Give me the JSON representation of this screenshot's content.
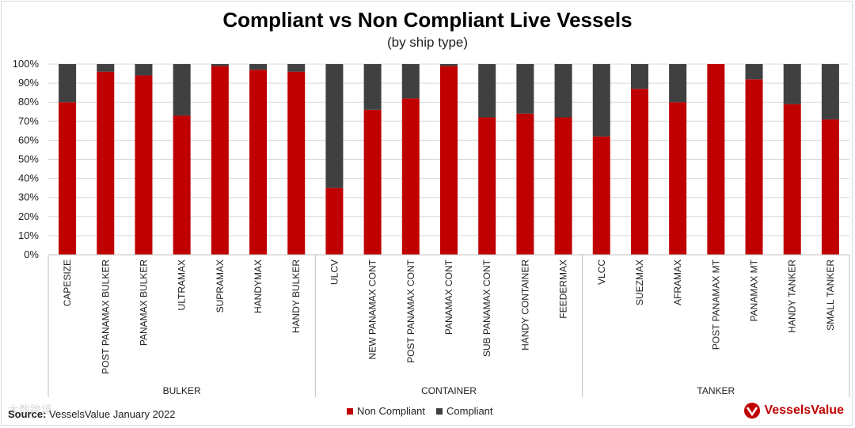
{
  "title": "Compliant vs Non Compliant Live Vessels",
  "subtitle": "(by ship type)",
  "source_label": "Source:",
  "source_text": "VesselsValue January 2022",
  "watermark": "大数跨境",
  "brand": "VesselsValue",
  "colors": {
    "non_compliant": "#c00000",
    "compliant": "#404040",
    "grid": "#d9d9d9"
  },
  "chart_data": {
    "type": "bar",
    "stacked": true,
    "percent": true,
    "title": "Compliant vs Non Compliant Live Vessels",
    "subtitle": "(by ship type)",
    "ylim": [
      0,
      100
    ],
    "yticks": [
      "0%",
      "10%",
      "20%",
      "30%",
      "40%",
      "50%",
      "60%",
      "70%",
      "80%",
      "90%",
      "100%"
    ],
    "categories": [
      "CAPESIZE",
      "POST PANAMAX BULKER",
      "PANAMAX BULKER",
      "ULTRAMAX",
      "SUPRAMAX",
      "HANDYMAX",
      "HANDY BULKER",
      "ULCV",
      "NEW PANAMAX CONT",
      "POST PANAMAX CONT",
      "PANAMAX CONT",
      "SUB PANAMAX CONT",
      "HANDY CONTAINER",
      "FEEDERMAX",
      "VLCC",
      "SUEZMAX",
      "AFRAMAX",
      "POST PANAMAX MT",
      "PANAMAX MT",
      "HANDY TANKER",
      "SMALL TANKER"
    ],
    "groups": [
      {
        "name": "BULKER",
        "count": 7
      },
      {
        "name": "CONTAINER",
        "count": 7
      },
      {
        "name": "TANKER",
        "count": 7
      }
    ],
    "series": [
      {
        "name": "Non Compliant",
        "values": [
          80,
          96,
          94,
          73,
          99,
          97,
          96,
          35,
          76,
          82,
          99,
          72,
          74,
          72,
          62,
          87,
          80,
          100,
          92,
          79,
          71
        ]
      },
      {
        "name": "Compliant",
        "values": [
          20,
          4,
          6,
          27,
          1,
          3,
          4,
          65,
          24,
          18,
          1,
          28,
          26,
          28,
          38,
          13,
          20,
          0,
          8,
          21,
          29
        ]
      }
    ],
    "legend": "bottom-center"
  }
}
